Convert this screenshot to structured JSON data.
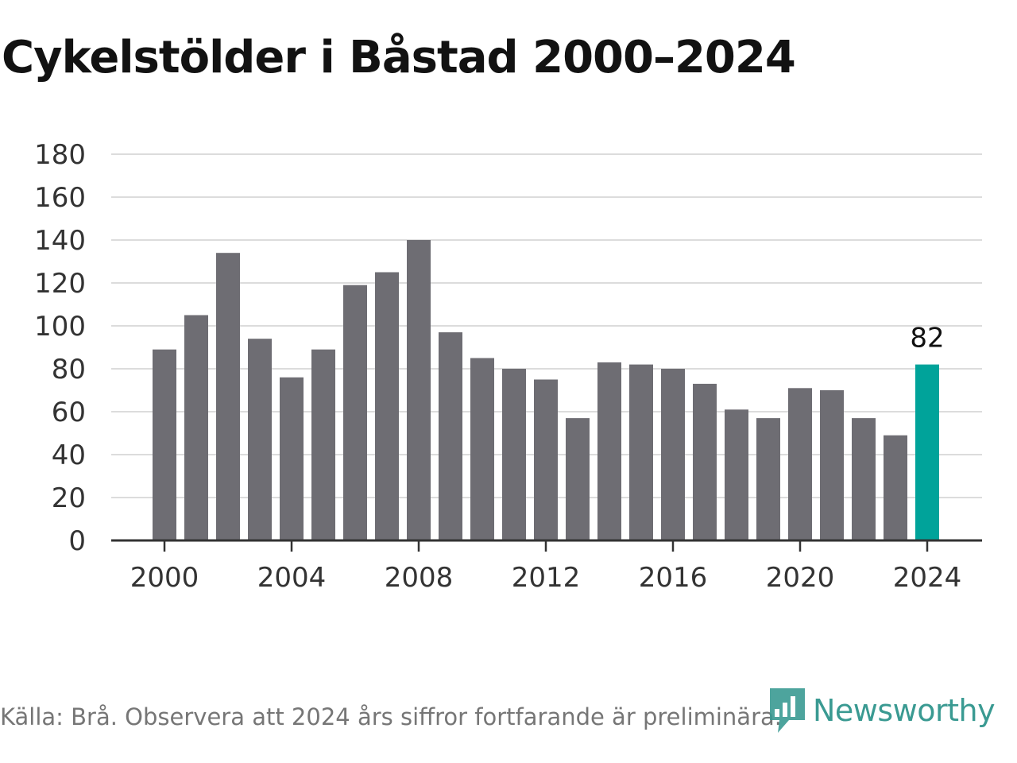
{
  "title": "Cykelstölder i Båstad 2000–2024",
  "source": "Källa: Brå. Observera att 2024 års siffror fortfarande är preliminära.",
  "brand": {
    "name": "Newsworthy",
    "color": "#3a9a92",
    "icon": "bar-chart-logo-icon"
  },
  "colors": {
    "bar": "#6e6d73",
    "highlight": "#00a39a",
    "grid": "#dcdcdc",
    "axis": "#333333"
  },
  "chart_data": {
    "type": "bar",
    "x": [
      2000,
      2001,
      2002,
      2003,
      2004,
      2005,
      2006,
      2007,
      2008,
      2009,
      2010,
      2011,
      2012,
      2013,
      2014,
      2015,
      2016,
      2017,
      2018,
      2019,
      2020,
      2021,
      2022,
      2023,
      2024
    ],
    "values": [
      89,
      105,
      134,
      94,
      76,
      89,
      119,
      125,
      140,
      97,
      85,
      80,
      75,
      57,
      83,
      82,
      80,
      73,
      61,
      57,
      71,
      70,
      57,
      49,
      82
    ],
    "highlight": {
      "x": 2024,
      "label": "82"
    },
    "x_ticks": [
      "2000",
      "2004",
      "2008",
      "2012",
      "2016",
      "2020",
      "2024"
    ],
    "y_ticks": [
      "0",
      "20",
      "40",
      "60",
      "80",
      "100",
      "120",
      "140",
      "160",
      "180"
    ],
    "ylim": [
      0,
      180
    ],
    "grid": true
  }
}
